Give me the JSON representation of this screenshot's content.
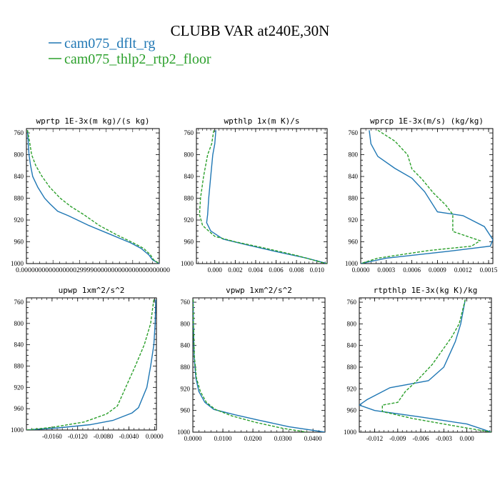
{
  "figure": {
    "title": "CLUBB VAR at240E,30N",
    "legend": [
      {
        "name": "cam075_dflt_rg",
        "color": "#1f77b4",
        "dash": "solid"
      },
      {
        "name": "cam075_thlp2_rtp2_floor",
        "color": "#2ca02c",
        "dash": "dashed"
      }
    ]
  },
  "chart_data": [
    {
      "type": "line",
      "title": "wprtp  1E-3x(m kg)/(s kg)",
      "xlim": [
        0.0,
        0.000255
      ],
      "ylim": [
        1000,
        752
      ],
      "yticks": [
        760,
        800,
        840,
        880,
        920,
        960,
        1000
      ],
      "xtick_text": "0.0000000000000000299990000000000000000000000",
      "xticks": [],
      "series": [
        {
          "name": "cam075_dflt_rg",
          "points": [
            [
              2e-06,
              755
            ],
            [
              3e-06,
              770
            ],
            [
              5e-06,
              800
            ],
            [
              8e-06,
              820
            ],
            [
              1.2e-05,
              840
            ],
            [
              2.2e-05,
              860
            ],
            [
              3.5e-05,
              880
            ],
            [
              4.5e-05,
              890
            ],
            [
              6e-05,
              904
            ],
            [
              8e-05,
              912
            ],
            [
              0.00012,
              930
            ],
            [
              0.00016,
              946
            ],
            [
              0.0002,
              962
            ],
            [
              0.00022,
              972
            ],
            [
              0.000235,
              984
            ],
            [
              0.000242,
              993
            ],
            [
              0.000255,
              1000
            ]
          ]
        },
        {
          "name": "cam075_thlp2_rtp2_floor",
          "points": [
            [
              2e-06,
              755
            ],
            [
              5e-06,
              770
            ],
            [
              1e-05,
              800
            ],
            [
              1.8e-05,
              820
            ],
            [
              3e-05,
              840
            ],
            [
              4.5e-05,
              860
            ],
            [
              6.5e-05,
              880
            ],
            [
              8.5e-05,
              895
            ],
            [
              0.00011,
              910
            ],
            [
              0.00014,
              930
            ],
            [
              0.000175,
              948
            ],
            [
              0.000205,
              962
            ],
            [
              0.000225,
              972
            ],
            [
              0.000238,
              984
            ],
            [
              0.000244,
              993
            ],
            [
              0.000255,
              1000
            ]
          ]
        }
      ]
    },
    {
      "type": "line",
      "title": "wpthlp  1x(m K)/s",
      "xlim": [
        -0.0018,
        0.011
      ],
      "ylim": [
        1000,
        752
      ],
      "yticks": [
        760,
        800,
        840,
        880,
        920,
        960,
        1000
      ],
      "xticks": [
        0.0,
        0.002,
        0.004,
        0.006,
        0.008,
        0.01
      ],
      "xtick_labels": [
        "0.000",
        "0.002",
        "0.004",
        "0.006",
        "0.008",
        "0.010"
      ],
      "series": [
        {
          "name": "cam075_dflt_rg",
          "points": [
            [
              0.0001,
              755
            ],
            [
              0.0,
              780
            ],
            [
              -0.0002,
              800
            ],
            [
              -0.0004,
              840
            ],
            [
              -0.0006,
              880
            ],
            [
              -0.0007,
              910
            ],
            [
              -0.0008,
              925
            ],
            [
              -0.0004,
              940
            ],
            [
              0.0008,
              955
            ],
            [
              0.003,
              965
            ],
            [
              0.006,
              978
            ],
            [
              0.009,
              990
            ],
            [
              0.011,
              1000
            ]
          ]
        },
        {
          "name": "cam075_thlp2_rtp2_floor",
          "points": [
            [
              -0.0001,
              755
            ],
            [
              -0.0003,
              780
            ],
            [
              -0.0007,
              800
            ],
            [
              -0.0011,
              840
            ],
            [
              -0.0014,
              880
            ],
            [
              -0.0015,
              910
            ],
            [
              -0.0012,
              930
            ],
            [
              0.0,
              950
            ],
            [
              0.002,
              960
            ],
            [
              0.005,
              972
            ],
            [
              0.008,
              985
            ],
            [
              0.0105,
              998
            ],
            [
              0.011,
              1000
            ]
          ]
        }
      ]
    },
    {
      "type": "line",
      "title": "wprcp  1E-3x(m/s) (kg/kg)",
      "xlim": [
        0.0,
        0.00155
      ],
      "ylim": [
        1000,
        752
      ],
      "yticks": [
        760,
        800,
        840,
        880,
        920,
        960,
        1000
      ],
      "xticks": [
        0.0,
        0.0003,
        0.0006,
        0.0009,
        0.0012,
        0.0015
      ],
      "xtick_labels": [
        "0.0000",
        "0.0003",
        "0.0006",
        "0.0009",
        "0.0012",
        "0.0015"
      ],
      "series": [
        {
          "name": "cam075_dflt_rg",
          "points": [
            [
              0.0001,
              755
            ],
            [
              0.00012,
              780
            ],
            [
              0.0002,
              803
            ],
            [
              0.0004,
              825
            ],
            [
              0.0006,
              843
            ],
            [
              0.00075,
              868
            ],
            [
              0.0009,
              905
            ],
            [
              0.0012,
              912
            ],
            [
              0.00145,
              932
            ],
            [
              0.00155,
              956
            ],
            [
              0.00152,
              968
            ],
            [
              0.001,
              978
            ],
            [
              0.0003,
              990
            ],
            [
              0.0,
              1000
            ]
          ]
        },
        {
          "name": "cam075_thlp2_rtp2_floor",
          "points": [
            [
              0.0002,
              755
            ],
            [
              0.0004,
              775
            ],
            [
              0.00055,
              800
            ],
            [
              0.0006,
              826
            ],
            [
              0.00072,
              845
            ],
            [
              0.00085,
              870
            ],
            [
              0.001,
              893
            ],
            [
              0.00108,
              910
            ],
            [
              0.00108,
              941
            ],
            [
              0.0014,
              958
            ],
            [
              0.0013,
              968
            ],
            [
              0.0008,
              976
            ],
            [
              0.0002,
              990
            ],
            [
              0.0,
              1000
            ]
          ]
        }
      ]
    },
    {
      "type": "line",
      "title": "upwp  1xm^2/s^2",
      "xlim": [
        -0.02,
        0.0003
      ],
      "ylim": [
        1000,
        752
      ],
      "yticks": [
        760,
        800,
        840,
        880,
        920,
        960,
        1000
      ],
      "xticks": [
        -0.016,
        -0.012,
        -0.008,
        -0.004,
        0.0
      ],
      "xtick_labels": [
        "-0.0160",
        "-0.0120",
        "-0.0080",
        "-0.0040",
        "0.0000"
      ],
      "series": [
        {
          "name": "cam075_dflt_rg",
          "points": [
            [
              0.0002,
              755
            ],
            [
              0.0001,
              800
            ],
            [
              -0.0001,
              840
            ],
            [
              -0.0006,
              880
            ],
            [
              -0.0012,
              920
            ],
            [
              -0.0025,
              958
            ],
            [
              -0.0035,
              968
            ],
            [
              -0.0065,
              982
            ],
            [
              -0.01,
              990
            ],
            [
              -0.015,
              996
            ],
            [
              -0.02,
              1000
            ]
          ]
        },
        {
          "name": "cam075_thlp2_rtp2_floor",
          "points": [
            [
              -0.0001,
              755
            ],
            [
              -0.0006,
              800
            ],
            [
              -0.0016,
              840
            ],
            [
              -0.003,
              880
            ],
            [
              -0.0045,
              920
            ],
            [
              -0.0058,
              955
            ],
            [
              -0.0075,
              970
            ],
            [
              -0.011,
              985
            ],
            [
              -0.016,
              995
            ],
            [
              -0.02,
              1000
            ]
          ]
        }
      ]
    },
    {
      "type": "line",
      "title": "vpwp  1xm^2/s^2",
      "xlim": [
        0.0,
        0.044
      ],
      "ylim": [
        1000,
        752
      ],
      "yticks": [
        760,
        800,
        840,
        880,
        920,
        960,
        1000
      ],
      "xticks": [
        0.0,
        0.01,
        0.02,
        0.03,
        0.04
      ],
      "xtick_labels": [
        "0.0000",
        "0.0100",
        "0.0200",
        "0.0300",
        "0.0400"
      ],
      "series": [
        {
          "name": "cam075_dflt_rg",
          "points": [
            [
              0.0001,
              755
            ],
            [
              0.0002,
              800
            ],
            [
              0.0004,
              860
            ],
            [
              0.001,
              900
            ],
            [
              0.002,
              925
            ],
            [
              0.004,
              945
            ],
            [
              0.007,
              958
            ],
            [
              0.014,
              968
            ],
            [
              0.022,
              978
            ],
            [
              0.032,
              990
            ],
            [
              0.044,
              1000
            ]
          ]
        },
        {
          "name": "cam075_thlp2_rtp2_floor",
          "points": [
            [
              0.0001,
              755
            ],
            [
              0.0002,
              800
            ],
            [
              0.0005,
              860
            ],
            [
              0.0012,
              900
            ],
            [
              0.0025,
              925
            ],
            [
              0.0045,
              945
            ],
            [
              0.0075,
              958
            ],
            [
              0.013,
              970
            ],
            [
              0.021,
              982
            ],
            [
              0.03,
              993
            ],
            [
              0.038,
              1000
            ]
          ]
        }
      ]
    },
    {
      "type": "line",
      "title": "rtpthlp  1E-3x(kg K)/kg",
      "xlim": [
        -0.014,
        0.0032
      ],
      "ylim": [
        1000,
        752
      ],
      "yticks": [
        760,
        800,
        840,
        880,
        920,
        960,
        1000
      ],
      "xticks": [
        -0.012,
        -0.009,
        -0.006,
        -0.003,
        0.0
      ],
      "xtick_labels": [
        "-0.012",
        "-0.009",
        "-0.006",
        "-0.003",
        "0.000"
      ],
      "series": [
        {
          "name": "cam075_dflt_rg",
          "points": [
            [
              -0.0002,
              755
            ],
            [
              -0.0008,
              800
            ],
            [
              -0.0015,
              833
            ],
            [
              -0.003,
              880
            ],
            [
              -0.005,
              905
            ],
            [
              -0.01,
              918
            ],
            [
              -0.013,
              940
            ],
            [
              -0.014,
              950
            ],
            [
              -0.012,
              960
            ],
            [
              -0.006,
              972
            ],
            [
              0.0,
              985
            ],
            [
              0.0032,
              1000
            ]
          ]
        },
        {
          "name": "cam075_thlp2_rtp2_floor",
          "points": [
            [
              -0.0002,
              755
            ],
            [
              -0.001,
              800
            ],
            [
              -0.002,
              825
            ],
            [
              -0.003,
              845
            ],
            [
              -0.0045,
              875
            ],
            [
              -0.0065,
              905
            ],
            [
              -0.008,
              925
            ],
            [
              -0.009,
              945
            ],
            [
              -0.011,
              950
            ],
            [
              -0.011,
              962
            ],
            [
              -0.007,
              975
            ],
            [
              -0.001,
              990
            ],
            [
              0.0032,
              1000
            ]
          ]
        }
      ]
    }
  ]
}
